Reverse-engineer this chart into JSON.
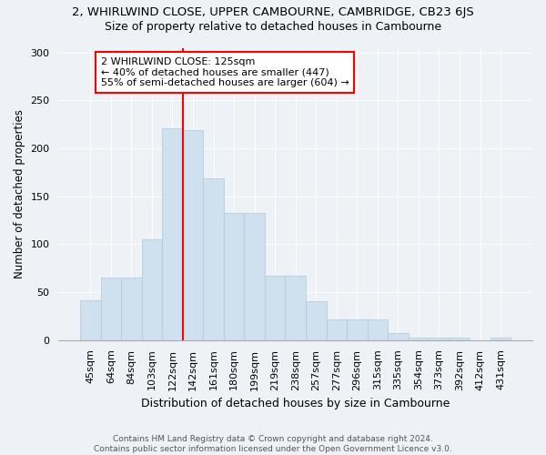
{
  "title": "2, WHIRLWIND CLOSE, UPPER CAMBOURNE, CAMBRIDGE, CB23 6JS",
  "subtitle": "Size of property relative to detached houses in Cambourne",
  "xlabel": "Distribution of detached houses by size in Cambourne",
  "ylabel": "Number of detached properties",
  "bar_color": "#cfe0ef",
  "bar_edgecolor": "#b0c8dd",
  "categories": [
    "45sqm",
    "64sqm",
    "84sqm",
    "103sqm",
    "122sqm",
    "142sqm",
    "161sqm",
    "180sqm",
    "199sqm",
    "219sqm",
    "238sqm",
    "257sqm",
    "277sqm",
    "296sqm",
    "315sqm",
    "335sqm",
    "354sqm",
    "373sqm",
    "392sqm",
    "412sqm",
    "431sqm"
  ],
  "values": [
    42,
    65,
    65,
    105,
    221,
    219,
    169,
    133,
    133,
    67,
    67,
    41,
    22,
    22,
    22,
    7,
    3,
    3,
    3,
    0,
    3
  ],
  "ylim": [
    0,
    305
  ],
  "yticks": [
    0,
    50,
    100,
    150,
    200,
    250,
    300
  ],
  "vline_x": 4.5,
  "annotation_text": "2 WHIRLWIND CLOSE: 125sqm\n← 40% of detached houses are smaller (447)\n55% of semi-detached houses are larger (604) →",
  "annotation_box_color": "white",
  "annotation_box_edgecolor": "red",
  "vline_color": "red",
  "footer_line1": "Contains HM Land Registry data © Crown copyright and database right 2024.",
  "footer_line2": "Contains public sector information licensed under the Open Government Licence v3.0.",
  "background_color": "#eef2f7",
  "grid_color": "white",
  "title_fontsize": 9.5,
  "subtitle_fontsize": 9,
  "xlabel_fontsize": 9,
  "ylabel_fontsize": 8.5,
  "tick_fontsize": 8,
  "footer_fontsize": 6.5,
  "annot_fontsize": 8
}
